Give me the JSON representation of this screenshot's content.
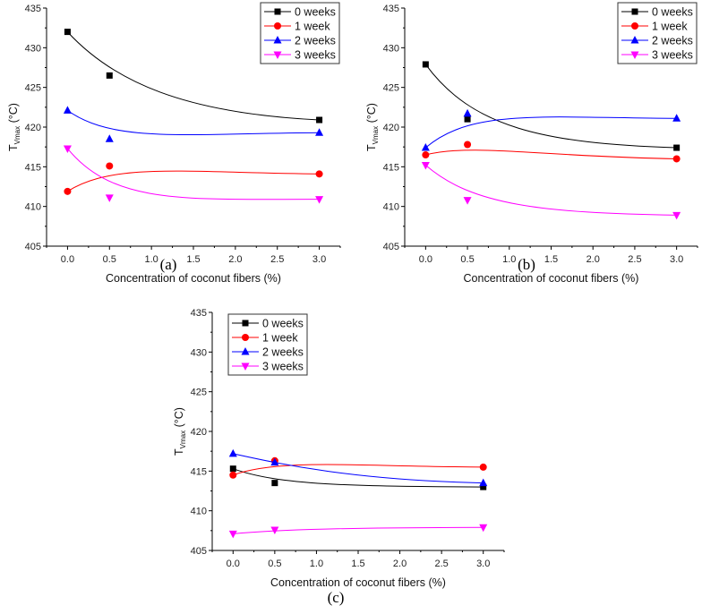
{
  "chart_data": [
    {
      "type": "line",
      "panel_label": "(a)",
      "xlabel": "Concentration of coconut fibers (%)",
      "ylabel_main": "T",
      "ylabel_sub": "Vmax",
      "ylabel_unit": " (°C)",
      "xlim": [
        -0.25,
        3.25
      ],
      "ylim": [
        405,
        435
      ],
      "xticks": [
        "0.0",
        "0.5",
        "1.0",
        "1.5",
        "2.0",
        "2.5",
        "3.0"
      ],
      "yticks": [
        "405",
        "410",
        "415",
        "420",
        "425",
        "430",
        "435"
      ],
      "legend_position": "top-right",
      "grid": false,
      "x": [
        0,
        0.5,
        3
      ],
      "series": [
        {
          "name": "0 weeks",
          "color": "#000000",
          "marker": "square",
          "values": [
            432.0,
            426.5,
            420.9
          ]
        },
        {
          "name": "1 week",
          "color": "#ff0000",
          "marker": "circle",
          "values": [
            411.9,
            415.1,
            414.1
          ]
        },
        {
          "name": "2 weeks",
          "color": "#0000ff",
          "marker": "triangle-up",
          "values": [
            422.1,
            418.5,
            419.3
          ]
        },
        {
          "name": "3 weeks",
          "color": "#ff00ff",
          "marker": "triangle-down",
          "values": [
            417.3,
            411.1,
            410.9
          ]
        }
      ]
    },
    {
      "type": "line",
      "panel_label": "(b)",
      "xlabel": "Concentration of coconut fibers (%)",
      "ylabel_main": "T",
      "ylabel_sub": "Vmax",
      "ylabel_unit": " (°C)",
      "xlim": [
        -0.25,
        3.25
      ],
      "ylim": [
        405,
        435
      ],
      "xticks": [
        "0.0",
        "0.5",
        "1.0",
        "1.5",
        "2.0",
        "2.5",
        "3.0"
      ],
      "yticks": [
        "405",
        "410",
        "415",
        "420",
        "425",
        "430",
        "435"
      ],
      "legend_position": "top-right",
      "grid": false,
      "x": [
        0,
        0.5,
        3
      ],
      "series": [
        {
          "name": "0 weeks",
          "color": "#000000",
          "marker": "square",
          "values": [
            427.9,
            421.0,
            417.4
          ]
        },
        {
          "name": "1 week",
          "color": "#ff0000",
          "marker": "circle",
          "values": [
            416.5,
            417.8,
            416.0
          ]
        },
        {
          "name": "2 weeks",
          "color": "#0000ff",
          "marker": "triangle-up",
          "values": [
            417.4,
            421.7,
            421.1
          ]
        },
        {
          "name": "3 weeks",
          "color": "#ff00ff",
          "marker": "triangle-down",
          "values": [
            415.2,
            410.8,
            408.9
          ]
        }
      ]
    },
    {
      "type": "line",
      "panel_label": "(c)",
      "xlabel": "Concentration of coconut fibers (%)",
      "ylabel_main": "T",
      "ylabel_sub": "Vmax",
      "ylabel_unit": " (°C)",
      "xlim": [
        -0.25,
        3.25
      ],
      "ylim": [
        405,
        435
      ],
      "xticks": [
        "0.0",
        "0.5",
        "1.0",
        "1.5",
        "2.0",
        "2.5",
        "3.0"
      ],
      "yticks": [
        "405",
        "410",
        "415",
        "420",
        "425",
        "430",
        "435"
      ],
      "legend_position": "top-left",
      "grid": false,
      "x": [
        0,
        0.5,
        3
      ],
      "series": [
        {
          "name": "0 weeks",
          "color": "#000000",
          "marker": "square",
          "values": [
            415.3,
            413.5,
            413.0
          ]
        },
        {
          "name": "1 week",
          "color": "#ff0000",
          "marker": "circle",
          "values": [
            414.5,
            416.3,
            415.5
          ]
        },
        {
          "name": "2 weeks",
          "color": "#0000ff",
          "marker": "triangle-up",
          "values": [
            417.2,
            416.1,
            413.5
          ]
        },
        {
          "name": "3 weeks",
          "color": "#ff00ff",
          "marker": "triangle-down",
          "values": [
            407.1,
            407.6,
            407.9
          ]
        }
      ]
    }
  ]
}
